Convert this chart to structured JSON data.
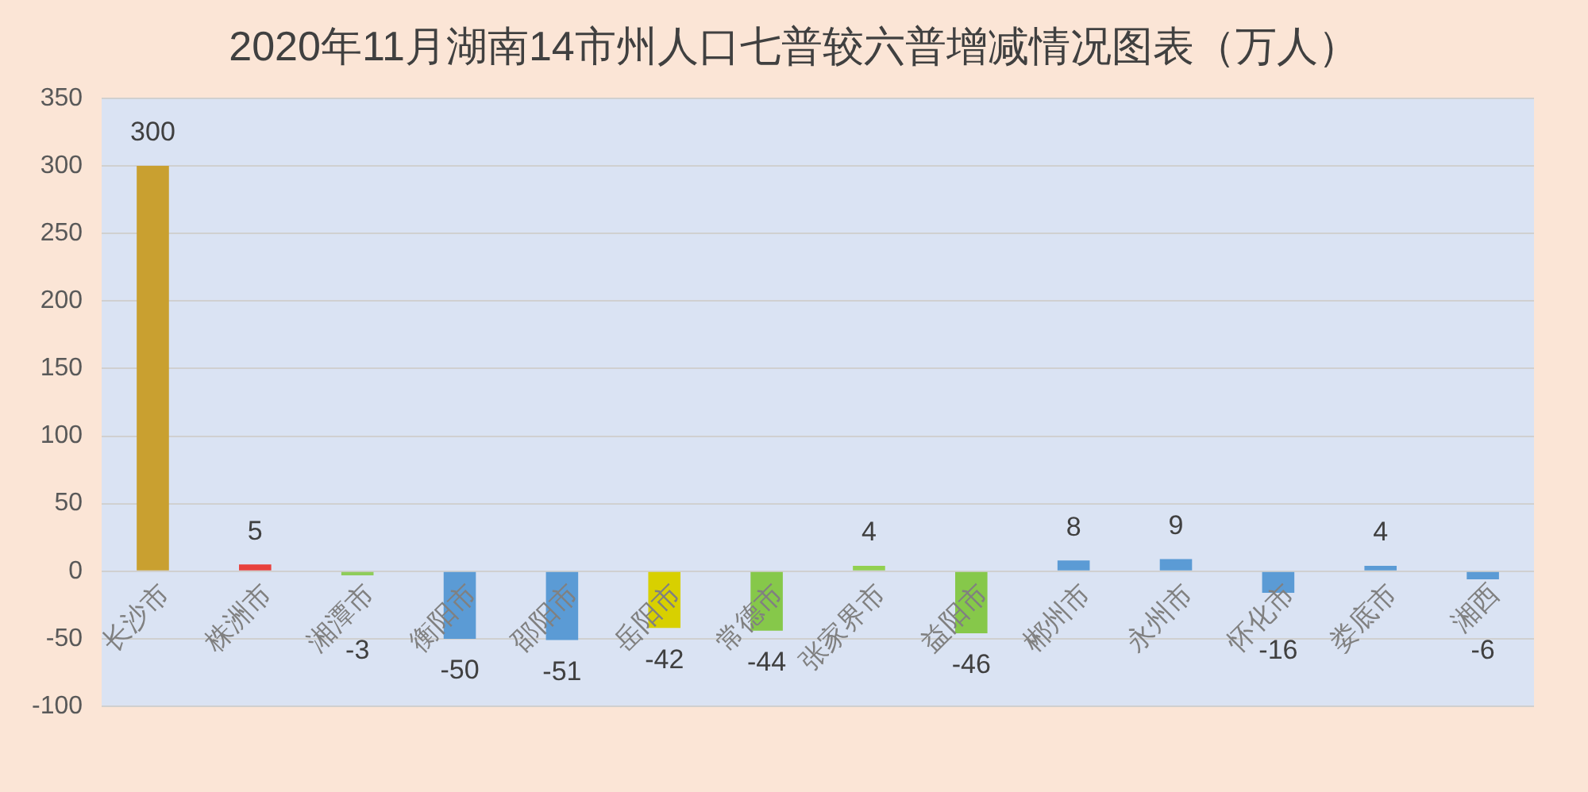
{
  "chart_data": {
    "type": "bar",
    "title": "2020年11月湖南14市州人口七普较六普增减情况图表（万人）",
    "categories": [
      "长沙市",
      "株洲市",
      "湘潭市",
      "衡阳市",
      "邵阳市",
      "岳阳市",
      "常德市",
      "张家界市",
      "益阳市",
      "郴州市",
      "永州市",
      "怀化市",
      "娄底市",
      "湘西"
    ],
    "values": [
      300,
      5,
      -3,
      -50,
      -51,
      -42,
      -44,
      4,
      -46,
      8,
      9,
      -16,
      4,
      -6
    ],
    "colors": [
      "#c9a030",
      "#e8413c",
      "#8fcc5a",
      "#5b9bd5",
      "#5b9bd5",
      "#d8d000",
      "#86c84a",
      "#92d050",
      "#86c84a",
      "#5b9bd5",
      "#5b9bd5",
      "#5b9bd5",
      "#5b9bd5",
      "#5b9bd5"
    ],
    "ylim": [
      -100,
      350
    ],
    "yticks": [
      -100,
      -50,
      0,
      50,
      100,
      150,
      200,
      250,
      300,
      350
    ],
    "grid": "y",
    "legend": false,
    "data_labels": true
  }
}
